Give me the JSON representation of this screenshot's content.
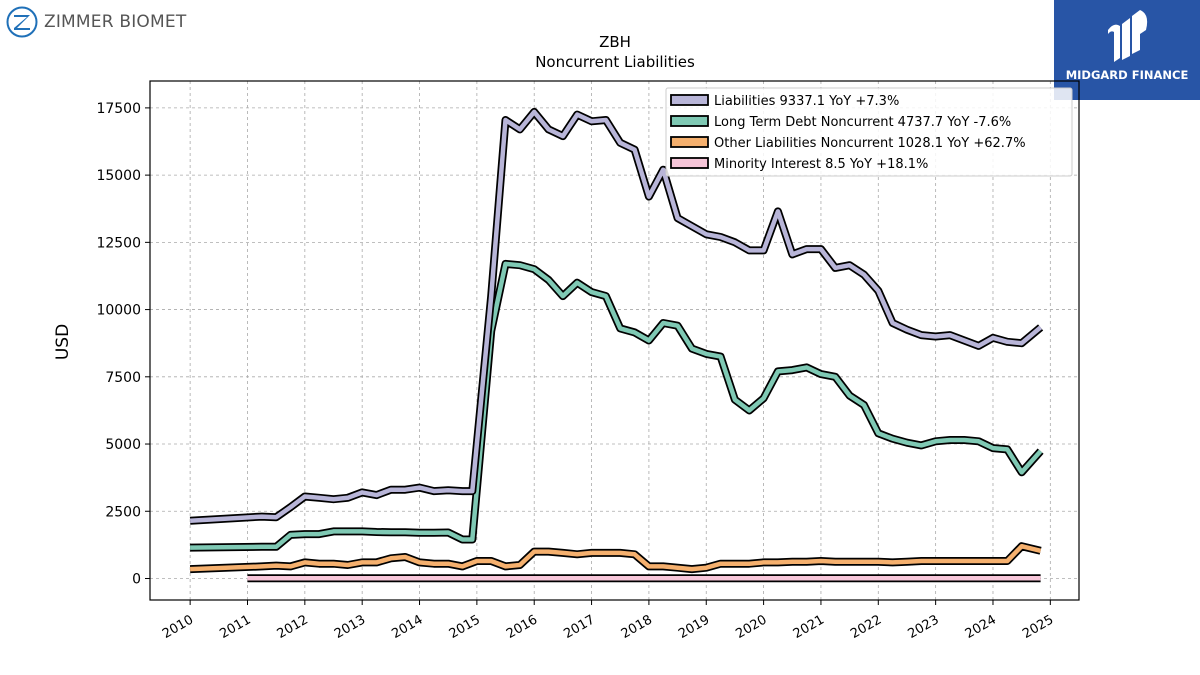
{
  "branding": {
    "company_logo_text": "ZIMMER BIOMET",
    "watermark_text": "MIDGARD FINANCE",
    "watermark_color": "#2855a6"
  },
  "chart_data": {
    "type": "line",
    "title": "ZBH",
    "subtitle": "Noncurrent  Liabilities",
    "ylabel": "USD",
    "xlabel": "",
    "xlim": [
      2009.3,
      2025.5
    ],
    "ylim": [
      -800,
      18500
    ],
    "yticks": [
      0,
      2500,
      5000,
      7500,
      10000,
      12500,
      15000,
      17500
    ],
    "xticks": [
      2010,
      2011,
      2012,
      2013,
      2014,
      2015,
      2016,
      2017,
      2018,
      2019,
      2020,
      2021,
      2022,
      2023,
      2024,
      2025
    ],
    "grid": true,
    "legend_position": "top-right",
    "series": [
      {
        "name": "Liabilities",
        "legend": "Liabilities  9337.1 YoY +7.3%",
        "color": "#b8b5d8",
        "x": [
          2010.0,
          2011.25,
          2011.5,
          2011.75,
          2012.0,
          2012.25,
          2012.5,
          2012.75,
          2013.0,
          2013.25,
          2013.5,
          2013.75,
          2014.0,
          2014.25,
          2014.5,
          2014.75,
          2014.92,
          2015.25,
          2015.5,
          2015.75,
          2016.0,
          2016.25,
          2016.5,
          2016.75,
          2017.0,
          2017.25,
          2017.5,
          2017.75,
          2018.0,
          2018.25,
          2018.5,
          2018.75,
          2019.0,
          2019.25,
          2019.5,
          2019.75,
          2020.0,
          2020.25,
          2020.5,
          2020.75,
          2021.0,
          2021.25,
          2021.5,
          2021.75,
          2022.0,
          2022.25,
          2022.5,
          2022.75,
          2023.0,
          2023.25,
          2023.5,
          2023.75,
          2024.0,
          2024.25,
          2024.5,
          2024.83
        ],
        "values": [
          2150,
          2300,
          2280,
          2650,
          3050,
          3000,
          2950,
          3000,
          3200,
          3100,
          3300,
          3300,
          3380,
          3250,
          3280,
          3250,
          3250,
          10500,
          17050,
          16700,
          17350,
          16700,
          16450,
          17250,
          17000,
          17050,
          16200,
          15950,
          14200,
          15200,
          13400,
          13100,
          12800,
          12700,
          12500,
          12200,
          12200,
          13650,
          12050,
          12250,
          12250,
          11550,
          11650,
          11300,
          10700,
          9500,
          9250,
          9050,
          9000,
          9050,
          8850,
          8650,
          8950,
          8800,
          8750,
          9337.1
        ]
      },
      {
        "name": "Long Term Debt Noncurrent",
        "legend": "Long Term Debt Noncurrent  4737.7 YoY -7.6%",
        "color": "#7fc9b4",
        "x": [
          2010.0,
          2011.25,
          2011.5,
          2011.75,
          2012.0,
          2012.25,
          2012.5,
          2012.75,
          2013.0,
          2013.25,
          2013.5,
          2013.75,
          2014.0,
          2014.25,
          2014.5,
          2014.75,
          2014.92,
          2015.25,
          2015.5,
          2015.75,
          2016.0,
          2016.25,
          2016.5,
          2016.75,
          2017.0,
          2017.25,
          2017.5,
          2017.75,
          2018.0,
          2018.25,
          2018.5,
          2018.75,
          2019.0,
          2019.25,
          2019.5,
          2019.75,
          2020.0,
          2020.25,
          2020.5,
          2020.75,
          2021.0,
          2021.25,
          2021.5,
          2021.75,
          2022.0,
          2022.25,
          2022.5,
          2022.75,
          2023.0,
          2023.25,
          2023.5,
          2023.75,
          2024.0,
          2024.25,
          2024.5,
          2024.83
        ],
        "values": [
          1150,
          1180,
          1180,
          1620,
          1650,
          1650,
          1750,
          1750,
          1750,
          1730,
          1720,
          1720,
          1700,
          1700,
          1710,
          1450,
          1450,
          9200,
          11700,
          11650,
          11500,
          11100,
          10500,
          11000,
          10650,
          10500,
          9300,
          9150,
          8850,
          9500,
          9400,
          8550,
          8350,
          8250,
          6650,
          6250,
          6700,
          7700,
          7750,
          7850,
          7600,
          7500,
          6800,
          6450,
          5400,
          5200,
          5050,
          4950,
          5100,
          5150,
          5150,
          5100,
          4850,
          4800,
          3950,
          4737.7
        ]
      },
      {
        "name": "Other Liabilities Noncurrent",
        "legend": "Other Liabilities Noncurrent  1028.1 YoY +62.7%",
        "color": "#f5b06e",
        "x": [
          2010.0,
          2011.25,
          2011.5,
          2011.75,
          2012.0,
          2012.25,
          2012.5,
          2012.75,
          2013.0,
          2013.25,
          2013.5,
          2013.75,
          2014.0,
          2014.25,
          2014.5,
          2014.75,
          2015.0,
          2015.25,
          2015.5,
          2015.75,
          2016.0,
          2016.25,
          2016.5,
          2016.75,
          2017.0,
          2017.25,
          2017.5,
          2017.75,
          2018.0,
          2018.25,
          2018.5,
          2018.75,
          2019.0,
          2019.25,
          2019.5,
          2019.75,
          2020.0,
          2020.25,
          2020.5,
          2020.75,
          2021.0,
          2021.25,
          2021.5,
          2021.75,
          2022.0,
          2022.25,
          2022.5,
          2022.75,
          2023.0,
          2023.25,
          2023.5,
          2023.75,
          2024.0,
          2024.25,
          2024.5,
          2024.83
        ],
        "values": [
          350,
          450,
          480,
          450,
          600,
          550,
          550,
          500,
          600,
          600,
          750,
          800,
          600,
          550,
          550,
          450,
          650,
          650,
          450,
          500,
          1000,
          1000,
          950,
          900,
          950,
          950,
          950,
          900,
          450,
          450,
          400,
          350,
          400,
          550,
          550,
          550,
          600,
          600,
          620,
          620,
          650,
          620,
          620,
          620,
          620,
          600,
          620,
          650,
          650,
          650,
          650,
          650,
          650,
          650,
          1200,
          1028.1
        ]
      },
      {
        "name": "Minority Interest",
        "legend": "Minority Interest  8.5 YoY +18.1%",
        "color": "#f7c6d9",
        "x": [
          2011.0,
          2024.83
        ],
        "values": [
          8.5,
          8.5
        ]
      }
    ]
  }
}
